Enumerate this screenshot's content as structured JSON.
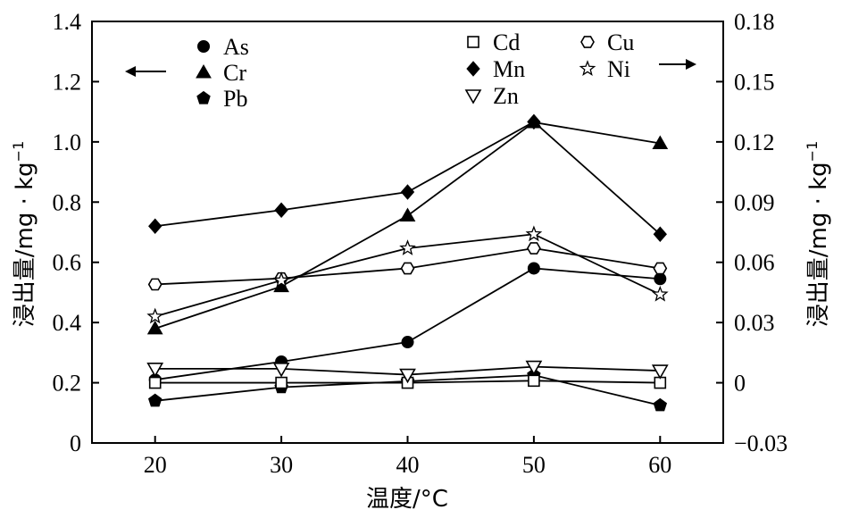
{
  "chart_data": {
    "type": "line",
    "title": "",
    "xlabel": "温度/°C",
    "ylabel_left": "浸出量/mg · kg",
    "ylabel_left_sup": "−1",
    "ylabel_right": "浸出量/mg · kg",
    "ylabel_right_sup": "−1",
    "x": [
      20,
      30,
      40,
      50,
      60
    ],
    "xlim": [
      15,
      65
    ],
    "xticks": [
      20,
      30,
      40,
      50,
      60
    ],
    "xtick_labels": [
      "20",
      "30",
      "40",
      "50",
      "60"
    ],
    "ylim_left": [
      0,
      1.4
    ],
    "yticks_left": [
      0,
      0.2,
      0.4,
      0.6,
      0.8,
      1.0,
      1.2,
      1.4
    ],
    "ytick_labels_left": [
      "0",
      "0.2",
      "0.4",
      "0.6",
      "0.8",
      "1.0",
      "1.2",
      "1.4"
    ],
    "ylim_right": [
      -0.03,
      0.18
    ],
    "yticks_right": [
      -0.03,
      0,
      0.03,
      0.06,
      0.09,
      0.12,
      0.15,
      0.18
    ],
    "ytick_labels_right": [
      "−0.03",
      "0",
      "0.03",
      "0.06",
      "0.09",
      "0.12",
      "0.15",
      "0.18"
    ],
    "grid": false,
    "series": [
      {
        "name": "As",
        "axis": "left",
        "marker": "circle-filled",
        "values": [
          0.21,
          0.27,
          0.335,
          0.58,
          0.545
        ]
      },
      {
        "name": "Cr",
        "axis": "left",
        "marker": "triangle-up-filled",
        "values": [
          0.38,
          0.52,
          0.755,
          1.065,
          0.995
        ]
      },
      {
        "name": "Pb",
        "axis": "left",
        "marker": "pentagon-filled",
        "values": [
          0.14,
          0.185,
          0.205,
          0.225,
          0.125
        ]
      },
      {
        "name": "Cd",
        "axis": "right",
        "marker": "square-open",
        "values": [
          0.0,
          0.0,
          0.0,
          0.001,
          0.0
        ]
      },
      {
        "name": "Mn",
        "axis": "right",
        "marker": "diamond-filled",
        "values": [
          0.078,
          0.086,
          0.095,
          0.13,
          0.074
        ]
      },
      {
        "name": "Zn",
        "axis": "right",
        "marker": "triangle-down-open",
        "values": [
          0.007,
          0.007,
          0.004,
          0.008,
          0.006
        ]
      },
      {
        "name": "Cu",
        "axis": "right",
        "marker": "hexagon-open",
        "values": [
          0.049,
          0.052,
          0.057,
          0.067,
          0.057
        ]
      },
      {
        "name": "Ni",
        "axis": "right",
        "marker": "star-open",
        "values": [
          0.033,
          0.051,
          0.067,
          0.074,
          0.044
        ]
      }
    ],
    "arrow_left_indicates": "left axis",
    "arrow_right_indicates": "right axis"
  }
}
